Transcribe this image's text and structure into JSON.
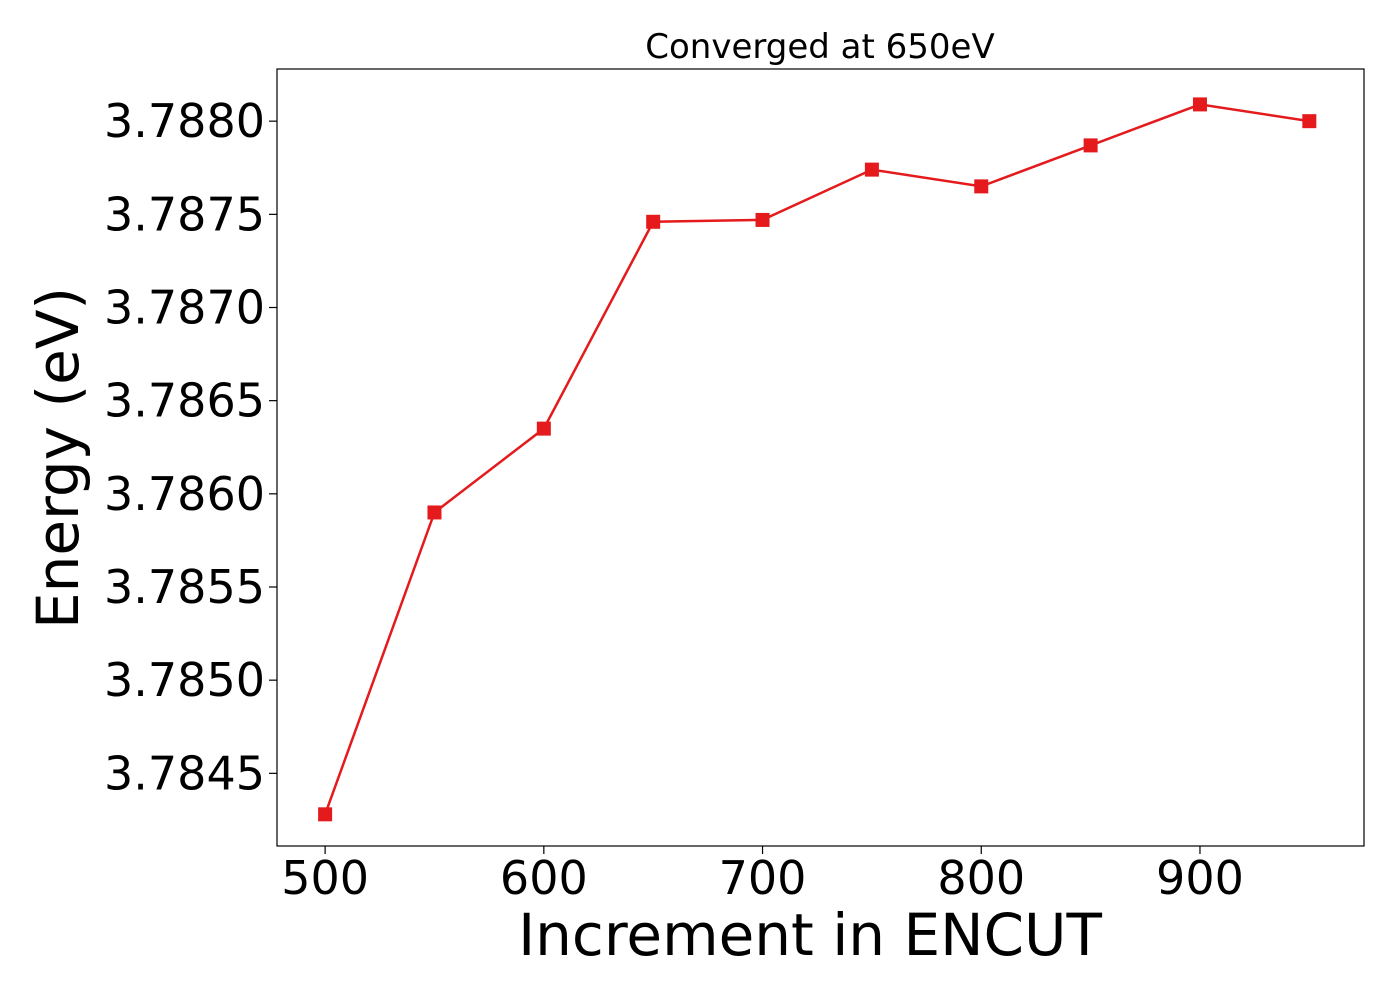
{
  "chart_data": {
    "type": "line",
    "title": "Converged at 650eV",
    "xlabel": "Increment in ENCUT",
    "ylabel": "Energy (eV)",
    "xlim": [
      478,
      975
    ],
    "ylim": [
      3.78411,
      3.78828
    ],
    "xticks": [
      500,
      600,
      700,
      800,
      900
    ],
    "yticks": [
      3.7845,
      3.785,
      3.7855,
      3.786,
      3.7865,
      3.787,
      3.7875,
      3.788
    ],
    "ytick_decimals": 4,
    "grid": false,
    "series": [
      {
        "color": "#e41a1c",
        "marker": "square",
        "x": [
          500,
          550,
          600,
          650,
          700,
          750,
          800,
          850,
          900,
          950
        ],
        "y": [
          3.78428,
          3.7859,
          3.78635,
          3.78746,
          3.78747,
          3.78774,
          3.78765,
          3.78787,
          3.78809,
          3.788
        ]
      }
    ]
  }
}
